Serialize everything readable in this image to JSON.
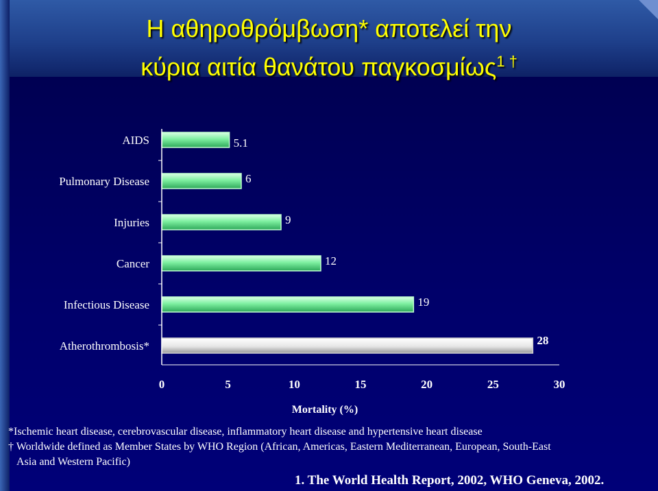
{
  "title": {
    "line1": "Η αθηροθρόμβωση* αποτελεί την",
    "line2": "κύρια αιτία θανάτου παγκοσμίως",
    "line2_superscript": "1 †"
  },
  "chart_data": {
    "type": "bar",
    "orientation": "horizontal",
    "categories": [
      "AIDS",
      "Pulmonary Disease",
      "Injuries",
      "Cancer",
      "Infectious Disease",
      "Atherothrombosis*"
    ],
    "values": [
      5.1,
      6,
      9,
      12,
      19,
      28
    ],
    "value_labels": [
      "5.1",
      "6",
      "9",
      "12",
      "19",
      "28"
    ],
    "xlabel": "Mortality (%)",
    "xlim": [
      0,
      30
    ],
    "xticks": [
      "0",
      "5",
      "10",
      "15",
      "20",
      "25",
      "30"
    ],
    "colors": {
      "default_bar": "#7df0a0",
      "highlight_bar": "#f2f2f2",
      "axis": "#ffffff",
      "text": "#ffffff"
    },
    "highlight_category": "Atherothrombosis*"
  },
  "footnotes": {
    "asterisk": "*Ischemic heart disease, cerebrovascular disease, inflammatory heart disease and hypertensive heart disease",
    "dagger": "† Worldwide defined as Member States by WHO Region (African, Americas, Eastern Mediterranean, European, South-East",
    "dagger_cont": "Asia and Western Pacific)"
  },
  "reference": "1. The World Health Report, 2002, WHO Geneva, 2002."
}
